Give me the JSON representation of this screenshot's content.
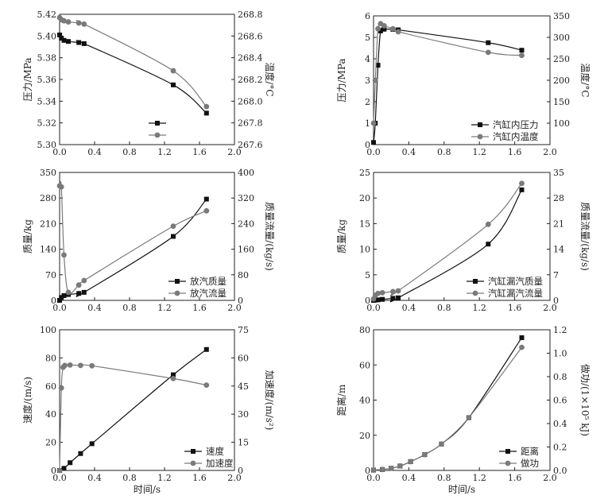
{
  "colors": {
    "black_series": "#111111",
    "gray_series": "#7a7a7a",
    "axis": "#222222"
  },
  "chart_data": [
    {
      "type": "line",
      "panel": "top-left",
      "xlabel": "",
      "ylabel": "压力/MPa",
      "y2label": "温度/°C",
      "xlim": [
        0.0,
        2.0
      ],
      "xticks": [
        0.0,
        0.4,
        0.8,
        1.2,
        1.6,
        2.0
      ],
      "ylim": [
        5.3,
        5.42
      ],
      "yticks": [
        5.3,
        5.32,
        5.34,
        5.36,
        5.38,
        5.4,
        5.42
      ],
      "y2lim": [
        267.6,
        268.8
      ],
      "y2ticks": [
        267.6,
        267.8,
        268.0,
        268.2,
        268.4,
        268.6,
        268.8
      ],
      "series": [
        {
          "name": "",
          "axis": "left",
          "marker": "square",
          "color": "#111111",
          "x": [
            0.0,
            0.02,
            0.05,
            0.1,
            0.22,
            0.28,
            1.3,
            1.68
          ],
          "values": [
            5.401,
            5.398,
            5.396,
            5.395,
            5.394,
            5.393,
            5.355,
            5.329
          ]
        },
        {
          "name": "",
          "axis": "right",
          "marker": "circle",
          "color": "#7a7a7a",
          "x": [
            0.0,
            0.02,
            0.05,
            0.1,
            0.22,
            0.28,
            1.3,
            1.68
          ],
          "values": [
            268.77,
            268.75,
            268.74,
            268.73,
            268.72,
            268.71,
            268.28,
            267.95
          ]
        }
      ],
      "legend_position": "center"
    },
    {
      "type": "line",
      "panel": "top-right",
      "xlabel": "",
      "ylabel": "压力/MPa",
      "y2label": "温度/°C",
      "xlim": [
        0.0,
        2.0
      ],
      "xticks": [
        0.0,
        0.4,
        0.8,
        1.2,
        1.6,
        2.0
      ],
      "ylim": [
        0,
        6
      ],
      "yticks": [
        0,
        1,
        2,
        3,
        4,
        5,
        6
      ],
      "y2lim": [
        50,
        350
      ],
      "y2ticks": [
        100,
        150,
        200,
        250,
        300,
        350
      ],
      "series": [
        {
          "name": "汽缸内压力",
          "axis": "left",
          "marker": "square",
          "color": "#111111",
          "x": [
            0.0,
            0.02,
            0.05,
            0.08,
            0.12,
            0.22,
            0.28,
            1.3,
            1.68
          ],
          "values": [
            0.1,
            1.0,
            3.7,
            5.3,
            5.38,
            5.37,
            5.35,
            4.75,
            4.4
          ]
        },
        {
          "name": "汽缸内温度",
          "axis": "right",
          "marker": "circle",
          "color": "#7a7a7a",
          "x": [
            0.0,
            0.02,
            0.05,
            0.08,
            0.12,
            0.22,
            0.28,
            1.3,
            1.68
          ],
          "values": [
            100,
            200,
            320,
            332,
            327,
            320,
            313,
            265,
            258
          ]
        }
      ],
      "legend_position": "bottom-right"
    },
    {
      "type": "line",
      "panel": "middle-left",
      "xlabel": "",
      "ylabel": "质量/kg",
      "y2label": "质量流量/(kg/s)",
      "xlim": [
        0.0,
        2.0
      ],
      "xticks": [
        0.0,
        0.4,
        0.8,
        1.2,
        1.6,
        2.0
      ],
      "ylim": [
        0,
        350
      ],
      "yticks": [
        0,
        70,
        140,
        210,
        280,
        350
      ],
      "y2lim": [
        0,
        400
      ],
      "y2ticks": [
        0,
        80,
        160,
        240,
        320,
        400
      ],
      "series": [
        {
          "name": "放汽质量",
          "axis": "left",
          "marker": "square",
          "color": "#111111",
          "x": [
            0.0,
            0.02,
            0.05,
            0.1,
            0.22,
            0.28,
            1.3,
            1.68
          ],
          "values": [
            0,
            8,
            13,
            16,
            19,
            22,
            175,
            277
          ]
        },
        {
          "name": "放汽流量",
          "axis": "right",
          "marker": "circle",
          "color": "#7a7a7a",
          "x": [
            0.0,
            0.02,
            0.05,
            0.1,
            0.22,
            0.28,
            1.3,
            1.68
          ],
          "values": [
            358,
            355,
            142,
            25,
            48,
            62,
            232,
            280
          ]
        }
      ],
      "legend_position": "bottom-right"
    },
    {
      "type": "line",
      "panel": "middle-right",
      "xlabel": "",
      "ylabel": "质量/kg",
      "y2label": "质量流量/(kg/s)",
      "xlim": [
        0.0,
        2.0
      ],
      "xticks": [
        0.0,
        0.4,
        0.8,
        1.2,
        1.6,
        2.0
      ],
      "ylim": [
        0,
        25
      ],
      "yticks": [
        0,
        5,
        10,
        15,
        20,
        25
      ],
      "y2lim": [
        0,
        35
      ],
      "y2ticks": [
        0,
        7,
        14,
        21,
        28,
        35
      ],
      "series": [
        {
          "name": "汽缸漏汽质量",
          "axis": "left",
          "marker": "square",
          "color": "#111111",
          "x": [
            0.0,
            0.02,
            0.05,
            0.1,
            0.22,
            0.28,
            1.3,
            1.68
          ],
          "values": [
            0,
            0.05,
            0.1,
            0.2,
            0.4,
            0.5,
            11.0,
            21.6
          ]
        },
        {
          "name": "汽缸漏汽流量",
          "axis": "right",
          "marker": "circle",
          "color": "#7a7a7a",
          "x": [
            0.0,
            0.02,
            0.05,
            0.1,
            0.22,
            0.28,
            1.3,
            1.68
          ],
          "values": [
            0.4,
            1.4,
            1.9,
            2.1,
            2.4,
            2.6,
            20.8,
            32.0
          ]
        }
      ],
      "legend_position": "bottom-right"
    },
    {
      "type": "line",
      "panel": "bottom-left",
      "xlabel": "时间/s",
      "ylabel": "速度/(m/s)",
      "y2label": "加速度/(m/s²)",
      "xlim": [
        0.0,
        2.0
      ],
      "xticks": [
        0.0,
        0.4,
        0.8,
        1.2,
        1.6,
        2.0
      ],
      "ylim": [
        0,
        100
      ],
      "yticks": [
        0,
        20,
        40,
        60,
        80,
        100
      ],
      "y2lim": [
        0,
        75
      ],
      "y2ticks": [
        0,
        15,
        30,
        45,
        60,
        75
      ],
      "series": [
        {
          "name": "速度",
          "axis": "left",
          "marker": "square",
          "color": "#111111",
          "x": [
            0.0,
            0.05,
            0.12,
            0.24,
            0.37,
            1.3,
            1.68
          ],
          "values": [
            0,
            1.5,
            5.5,
            12,
            19,
            68,
            86
          ]
        },
        {
          "name": "加速度",
          "axis": "right",
          "marker": "circle",
          "color": "#7a7a7a",
          "x": [
            0.0,
            0.02,
            0.04,
            0.06,
            0.12,
            0.24,
            0.37,
            1.3,
            1.68
          ],
          "values": [
            0,
            44,
            55,
            56,
            56.2,
            56,
            55.8,
            49,
            45.5
          ]
        }
      ],
      "legend_position": "bottom-right"
    },
    {
      "type": "line",
      "panel": "bottom-right",
      "xlabel": "时间/s",
      "ylabel": "距离/m",
      "y2label": "做功/(1×10⁵ kJ)",
      "xlim": [
        0.0,
        2.0
      ],
      "xticks": [
        0.0,
        0.4,
        0.8,
        1.2,
        1.6,
        2.0
      ],
      "ylim": [
        0,
        80
      ],
      "yticks": [
        0,
        20,
        40,
        60,
        80
      ],
      "y2lim": [
        0,
        1.2
      ],
      "y2ticks": [
        0.0,
        0.2,
        0.4,
        0.6,
        0.8,
        1.0,
        1.2
      ],
      "series": [
        {
          "name": "距离",
          "axis": "left",
          "marker": "square",
          "color": "#111111",
          "x": [
            0.0,
            0.1,
            0.2,
            0.3,
            0.42,
            0.58,
            0.77,
            1.08,
            1.68
          ],
          "values": [
            0.2,
            0.5,
            1.2,
            2.5,
            5,
            9,
            15,
            30,
            75.5
          ]
        },
        {
          "name": "做功",
          "axis": "right",
          "marker": "circle",
          "color": "#7a7a7a",
          "x": [
            0.0,
            0.1,
            0.2,
            0.3,
            0.42,
            0.58,
            0.77,
            1.08,
            1.68
          ],
          "values": [
            0.003,
            0.008,
            0.018,
            0.038,
            0.075,
            0.135,
            0.225,
            0.45,
            1.05
          ]
        }
      ],
      "legend_position": "bottom-right"
    }
  ]
}
